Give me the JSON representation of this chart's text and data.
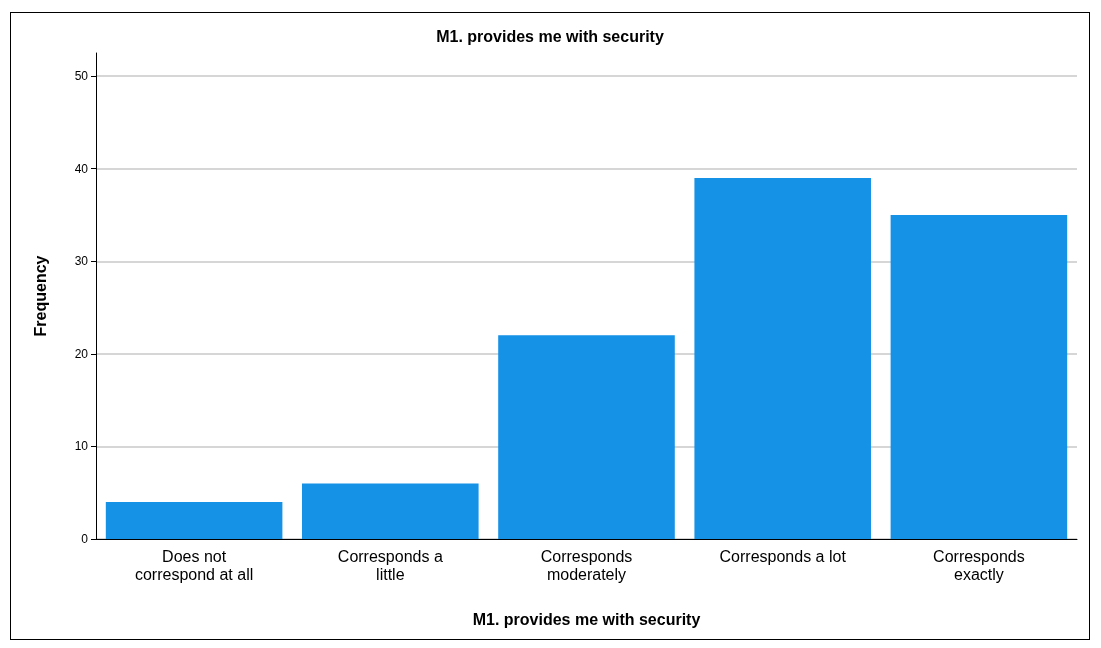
{
  "chart_data": {
    "type": "bar",
    "title": "M1. provides me with security",
    "xlabel": "M1. provides me with security",
    "ylabel": "Frequency",
    "categories": [
      "Does not\ncorrespond at all",
      "Corresponds a\nlittle",
      "Corresponds\nmoderately",
      "Corresponds a lot",
      "Corresponds\nexactly"
    ],
    "values": [
      4,
      6,
      22,
      39,
      35
    ],
    "color": "#1591e6",
    "ylim": [
      0,
      52.5
    ],
    "yticks": [
      0,
      10,
      20,
      30,
      40,
      50
    ],
    "grid": "y"
  }
}
